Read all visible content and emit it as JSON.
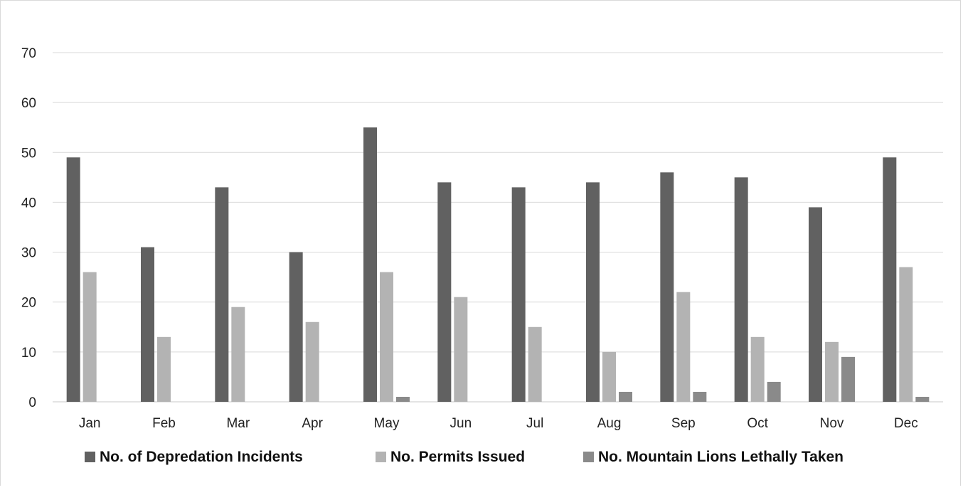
{
  "chart_data": {
    "type": "bar",
    "title": "",
    "xlabel": "",
    "ylabel": "",
    "categories": [
      "Jan",
      "Feb",
      "Mar",
      "Apr",
      "May",
      "Jun",
      "Jul",
      "Aug",
      "Sep",
      "Oct",
      "Nov",
      "Dec"
    ],
    "yticks": [
      "0",
      "10",
      "20",
      "30",
      "40",
      "50",
      "60",
      "70"
    ],
    "ylim": [
      0,
      70
    ],
    "grid": true,
    "legend_position": "bottom",
    "series": [
      {
        "name": "No. of Depredation Incidents",
        "color": "#616161",
        "values": [
          49,
          31,
          43,
          30,
          55,
          44,
          43,
          44,
          46,
          45,
          39,
          49
        ]
      },
      {
        "name": "No. Permits Issued",
        "color": "#b3b3b3",
        "values": [
          26,
          13,
          19,
          16,
          26,
          21,
          15,
          10,
          22,
          13,
          12,
          27
        ]
      },
      {
        "name": "No. Mountain Lions Lethally Taken",
        "color": "#8a8a8a",
        "values": [
          0,
          0,
          0,
          0,
          1,
          0,
          0,
          2,
          2,
          4,
          9,
          1
        ]
      }
    ]
  }
}
